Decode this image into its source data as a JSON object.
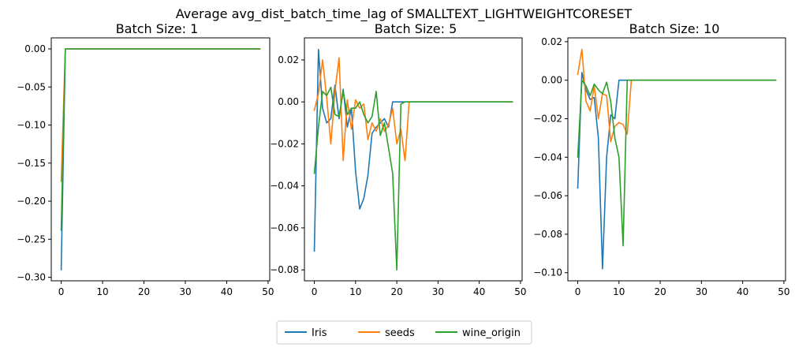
{
  "figure": {
    "title": "Average avg_dist_batch_time_lag of SMALLTEXT_LIGHTWEIGHTCORESET"
  },
  "legend": {
    "placement": "bottom-center",
    "entries": [
      {
        "name": "Iris",
        "color": "#1f77b4"
      },
      {
        "name": "seeds",
        "color": "#ff7f0e"
      },
      {
        "name": "wine_origin",
        "color": "#2ca02c"
      }
    ]
  },
  "chart_data": [
    {
      "type": "line",
      "title": "Batch Size: 1",
      "xlim": [
        -2.4,
        50.4
      ],
      "ylim": [
        -0.3046,
        0.0145
      ],
      "xticks": [
        0,
        10,
        20,
        30,
        40,
        50
      ],
      "yticks": [
        -0.3,
        -0.25,
        -0.2,
        -0.15,
        -0.1,
        -0.05,
        0.0
      ],
      "ytick_labels": [
        "−0.30",
        "−0.25",
        "−0.20",
        "−0.15",
        "−0.10",
        "−0.05",
        "0.00"
      ],
      "series": [
        {
          "name": "Iris",
          "color": "#1f77b4",
          "x": [
            0,
            1,
            2,
            10,
            20,
            30,
            40,
            48
          ],
          "y": [
            -0.29,
            0,
            0,
            0,
            0,
            0,
            0,
            0
          ]
        },
        {
          "name": "seeds",
          "color": "#ff7f0e",
          "x": [
            0,
            1,
            2,
            10,
            20,
            30,
            40,
            48
          ],
          "y": [
            -0.174,
            0,
            0,
            0,
            0,
            0,
            0,
            0
          ]
        },
        {
          "name": "wine_origin",
          "color": "#2ca02c",
          "x": [
            0,
            1,
            2,
            10,
            20,
            30,
            40,
            48
          ],
          "y": [
            -0.238,
            0,
            0,
            0,
            0,
            0,
            0,
            0
          ]
        }
      ]
    },
    {
      "type": "line",
      "title": "Batch Size: 5",
      "xlim": [
        -2.4,
        50.4
      ],
      "ylim": [
        -0.0852,
        0.0305
      ],
      "xticks": [
        0,
        10,
        20,
        30,
        40,
        50
      ],
      "yticks": [
        -0.08,
        -0.06,
        -0.04,
        -0.02,
        0.0,
        0.02
      ],
      "ytick_labels": [
        "−0.08",
        "−0.06",
        "−0.04",
        "−0.02",
        "0.00",
        "0.02"
      ],
      "series": [
        {
          "name": "Iris",
          "color": "#1f77b4",
          "x": [
            0,
            1,
            2,
            3,
            4,
            5,
            6,
            7,
            8,
            9,
            10,
            11,
            12,
            13,
            14,
            15,
            16,
            17,
            18,
            19,
            20,
            21,
            22,
            23,
            24,
            30,
            40,
            48
          ],
          "y": [
            -0.071,
            0.025,
            -0.003,
            -0.01,
            -0.008,
            0.008,
            -0.008,
            0.006,
            -0.012,
            -0.003,
            -0.033,
            -0.051,
            -0.046,
            -0.035,
            -0.015,
            -0.012,
            -0.01,
            -0.008,
            -0.012,
            0,
            0,
            0,
            0,
            0,
            0,
            0,
            0,
            0
          ]
        },
        {
          "name": "seeds",
          "color": "#ff7f0e",
          "x": [
            0,
            1,
            2,
            3,
            4,
            5,
            6,
            7,
            8,
            9,
            10,
            11,
            12,
            13,
            14,
            15,
            16,
            17,
            18,
            19,
            20,
            21,
            22,
            23,
            24,
            30,
            40,
            48
          ],
          "y": [
            -0.004,
            0.004,
            0.02,
            0.002,
            -0.02,
            0.005,
            0.021,
            -0.028,
            0.001,
            -0.013,
            0.001,
            -0.003,
            -0.001,
            -0.018,
            -0.01,
            -0.014,
            -0.008,
            -0.014,
            -0.011,
            -0.003,
            -0.02,
            -0.013,
            -0.028,
            0,
            0,
            0,
            0,
            0
          ]
        },
        {
          "name": "wine_origin",
          "color": "#2ca02c",
          "x": [
            0,
            1,
            2,
            3,
            4,
            5,
            6,
            7,
            8,
            9,
            10,
            11,
            12,
            13,
            14,
            15,
            16,
            17,
            18,
            19,
            20,
            21,
            22,
            23,
            24,
            30,
            40,
            48
          ],
          "y": [
            -0.034,
            -0.012,
            0.005,
            0.003,
            0.007,
            -0.006,
            -0.007,
            0.005,
            -0.006,
            -0.003,
            -0.003,
            0,
            -0.006,
            -0.01,
            -0.007,
            0.005,
            -0.016,
            -0.01,
            -0.022,
            -0.034,
            -0.08,
            -0.001,
            0,
            0,
            0,
            0,
            0,
            0
          ]
        }
      ]
    },
    {
      "type": "line",
      "title": "Batch Size: 10",
      "xlim": [
        -2.4,
        50.4
      ],
      "ylim": [
        -0.1042,
        0.022
      ],
      "xticks": [
        0,
        10,
        20,
        30,
        40,
        50
      ],
      "yticks": [
        -0.1,
        -0.08,
        -0.06,
        -0.04,
        -0.02,
        0.0,
        0.02
      ],
      "ytick_labels": [
        "−0.10",
        "−0.08",
        "−0.06",
        "−0.04",
        "−0.02",
        "0.00",
        "0.02"
      ],
      "series": [
        {
          "name": "Iris",
          "color": "#1f77b4",
          "x": [
            0,
            1,
            2,
            3,
            4,
            5,
            6,
            7,
            8,
            9,
            10,
            11,
            12,
            20,
            30,
            40,
            48
          ],
          "y": [
            -0.056,
            0.004,
            -0.005,
            -0.01,
            -0.009,
            -0.03,
            -0.098,
            -0.04,
            -0.018,
            -0.02,
            0,
            0,
            0,
            0,
            0,
            0,
            0
          ]
        },
        {
          "name": "seeds",
          "color": "#ff7f0e",
          "x": [
            0,
            1,
            2,
            3,
            4,
            5,
            6,
            7,
            8,
            9,
            10,
            11,
            12,
            13,
            20,
            30,
            40,
            48
          ],
          "y": [
            0.003,
            0.016,
            -0.011,
            -0.016,
            -0.003,
            -0.02,
            -0.007,
            -0.008,
            -0.032,
            -0.024,
            -0.022,
            -0.023,
            -0.028,
            0,
            0,
            0,
            0,
            0
          ]
        },
        {
          "name": "wine_origin",
          "color": "#2ca02c",
          "x": [
            0,
            1,
            2,
            3,
            4,
            5,
            6,
            7,
            8,
            9,
            10,
            11,
            12,
            20,
            30,
            40,
            48
          ],
          "y": [
            -0.04,
            0,
            -0.003,
            -0.008,
            -0.002,
            -0.005,
            -0.007,
            -0.001,
            -0.011,
            -0.03,
            -0.04,
            -0.086,
            0,
            0,
            0,
            0,
            0
          ]
        }
      ]
    }
  ]
}
